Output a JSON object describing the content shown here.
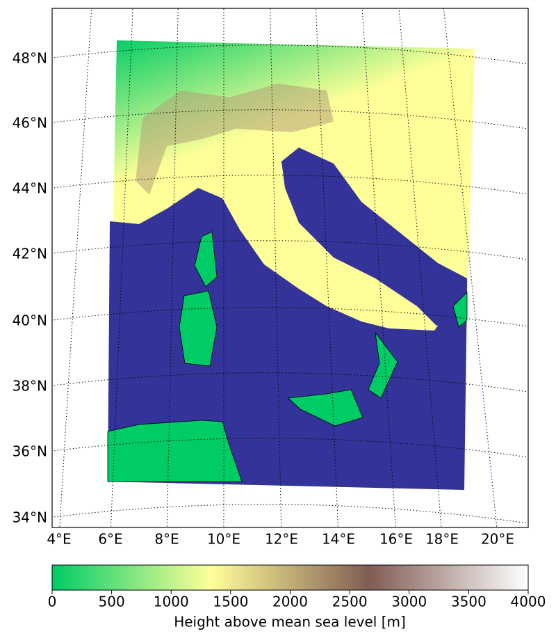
{
  "map": {
    "lat_labels": [
      "48°N",
      "46°N",
      "44°N",
      "42°N",
      "40°N",
      "38°N",
      "36°N",
      "34°N"
    ],
    "lon_labels": [
      "4°E",
      "6°E",
      "8°E",
      "10°E",
      "12°E",
      "14°E",
      "16°E",
      "18°E",
      "20°E"
    ],
    "sea_color": "#333399"
  },
  "colorbar": {
    "label": "Height above mean sea level [m]",
    "lim": [
      0,
      4000
    ],
    "ticks": [
      0,
      500,
      1000,
      1500,
      2000,
      2500,
      3000,
      3500,
      4000
    ],
    "colors": [
      "#00cc66",
      "#ffff99",
      "#805c54",
      "#ffffff"
    ]
  }
}
